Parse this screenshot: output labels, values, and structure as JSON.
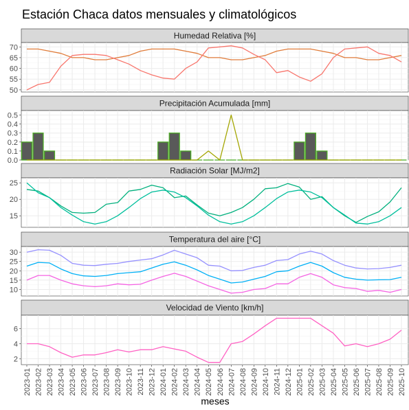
{
  "chart_data": {
    "type": "line",
    "title": "Estación Chaca datos mensuales y climatológicos",
    "xlabel": "meses",
    "x": [
      "2023-01",
      "2023-02",
      "2023-03",
      "2023-04",
      "2023-05",
      "2023-06",
      "2023-07",
      "2023-08",
      "2023-09",
      "2023-10",
      "2023-11",
      "2023-12",
      "2024-01",
      "2024-02",
      "2024-03",
      "2024-04",
      "2024-05",
      "2024-06",
      "2024-07",
      "2024-08",
      "2024-09",
      "2024-10",
      "2024-11",
      "2024-12",
      "2025-01",
      "2025-02",
      "2025-03",
      "2025-04",
      "2025-05",
      "2025-06",
      "2025-07",
      "2025-08",
      "2025-09",
      "2025-10"
    ],
    "panels": [
      {
        "strip": "Humedad Relativa [%]",
        "ylim": [
          49,
          72
        ],
        "yticks": [
          50,
          55,
          60,
          65,
          70
        ],
        "series": [
          {
            "color": "#e07b39",
            "values": [
              69,
              69,
              68,
              67,
              65,
              65,
              64,
              64,
              65,
              66,
              68,
              69,
              69,
              69,
              68,
              67,
              65,
              65,
              64,
              64,
              65,
              66,
              68,
              69,
              69,
              69,
              68,
              67,
              65,
              65,
              64,
              64,
              65,
              66
            ]
          },
          {
            "color": "#f8766d",
            "values": [
              50,
              52.5,
              53.5,
              61,
              66,
              66.5,
              66.5,
              66,
              64,
              62,
              59,
              57,
              55.5,
              55,
              60,
              63,
              69.5,
              70,
              70.5,
              69.5,
              66.5,
              64,
              58,
              59,
              56,
              54,
              57.5,
              65,
              69,
              69.5,
              70,
              67,
              66,
              63
            ]
          }
        ]
      },
      {
        "strip": "Precipitación Acumulada [mm]",
        "ylim": [
          0,
          0.55
        ],
        "yticks": [
          0.0,
          0.1,
          0.2,
          0.3,
          0.4,
          0.5
        ],
        "bars": {
          "fill": "#595959",
          "outline": "#4dac26",
          "values": [
            0.2,
            0.3,
            0.1,
            0,
            0,
            0,
            0,
            0,
            0,
            0,
            0,
            0,
            0.2,
            0.3,
            0.1,
            0,
            0,
            0,
            0,
            0,
            0,
            0,
            0,
            0,
            0.2,
            0.3,
            0.1,
            0,
            0,
            0,
            0,
            0,
            0,
            0
          ]
        },
        "series": [
          {
            "color": "#a3a500",
            "values": [
              0,
              0,
              0,
              0,
              0,
              0,
              0,
              0,
              0,
              0,
              0,
              0,
              0,
              0,
              0,
              0,
              0.1,
              0,
              0.5,
              0,
              0,
              0,
              0,
              0,
              0,
              0,
              0,
              0,
              0,
              0,
              0,
              0,
              0,
              0
            ]
          }
        ]
      },
      {
        "strip": "Radiación Solar [MJ/m2]",
        "ylim": [
          11.5,
          26.5
        ],
        "yticks": [
          15,
          20,
          25
        ],
        "series": [
          {
            "color": "#00b07d",
            "values": [
              23,
              22.5,
              20.5,
              18,
              16,
              15.8,
              16,
              18.5,
              19,
              22.5,
              23,
              24.3,
              23.5,
              20.5,
              21,
              18.3,
              15.8,
              15,
              16,
              17.5,
              20,
              23.2,
              23.5,
              24.8,
              23.7,
              20,
              20.8,
              17.5,
              15,
              13,
              14.8,
              16.2,
              19.2,
              23.5
            ]
          },
          {
            "color": "#00bf9c",
            "values": [
              25,
              22,
              20.5,
              17.5,
              15.2,
              13.2,
              12.5,
              13.2,
              15,
              17.5,
              20.2,
              22.2,
              22.8,
              22.2,
              20.5,
              18,
              15.2,
              13.2,
              12.5,
              13.2,
              15,
              17.5,
              20.2,
              22.2,
              22.8,
              22.2,
              20.5,
              17.5,
              15.2,
              12.8,
              12.5,
              13.2,
              15,
              17.5
            ]
          }
        ]
      },
      {
        "strip": "Temperatura del aire [°C]",
        "ylim": [
          6.5,
          33
        ],
        "yticks": [
          10,
          15,
          20,
          25,
          30
        ],
        "series": [
          {
            "color": "#9590ff",
            "values": [
              30,
              31.3,
              31,
              28.3,
              24,
              23,
              22.8,
              23.5,
              24,
              25,
              25.8,
              26.5,
              28.5,
              31,
              29,
              27,
              23,
              22.5,
              20,
              20.2,
              21.8,
              23,
              25.5,
              26,
              29,
              30.5,
              29,
              25.5,
              23,
              21.5,
              21,
              21.2,
              21.8,
              23
            ]
          },
          {
            "color": "#00b0f6",
            "values": [
              22.5,
              24.5,
              24.2,
              21,
              18.5,
              17.3,
              17,
              17.5,
              18.5,
              19,
              19.5,
              21.5,
              23.5,
              24.8,
              23,
              20.5,
              17.5,
              15.5,
              13.5,
              14,
              15.5,
              17,
              19.5,
              20,
              22.5,
              24.5,
              22.5,
              19,
              16.5,
              15.5,
              15,
              15.2,
              15.3,
              16.5
            ]
          },
          {
            "color": "#f564e3",
            "values": [
              15,
              17.5,
              17.5,
              15,
              13,
              12,
              11.5,
              12,
              13,
              12.5,
              12.8,
              15,
              17,
              18.7,
              17,
              14.5,
              12,
              10,
              8,
              8.5,
              10,
              10.5,
              13,
              13,
              16.5,
              18.5,
              16.5,
              12.5,
              11,
              10.5,
              9,
              9.5,
              8.5,
              10
            ]
          }
        ]
      },
      {
        "strip": "Velocidad de Viento [km/h]",
        "ylim": [
          1.2,
          7.8
        ],
        "yticks": [
          2,
          4,
          6
        ],
        "series": [
          {
            "color": "#ff61c3",
            "values": [
              4,
              4,
              3.6,
              2.8,
              2.2,
              2.5,
              2.5,
              2.8,
              3.2,
              2.9,
              3.2,
              3.2,
              3.6,
              3.3,
              3,
              2.2,
              1.5,
              1.5,
              4,
              4.3,
              5.3,
              6.4,
              7.4,
              7.4,
              7.4,
              7.4,
              6.4,
              5.4,
              3.7,
              4,
              3.6,
              4,
              4.6,
              5.8
            ]
          }
        ]
      }
    ]
  }
}
